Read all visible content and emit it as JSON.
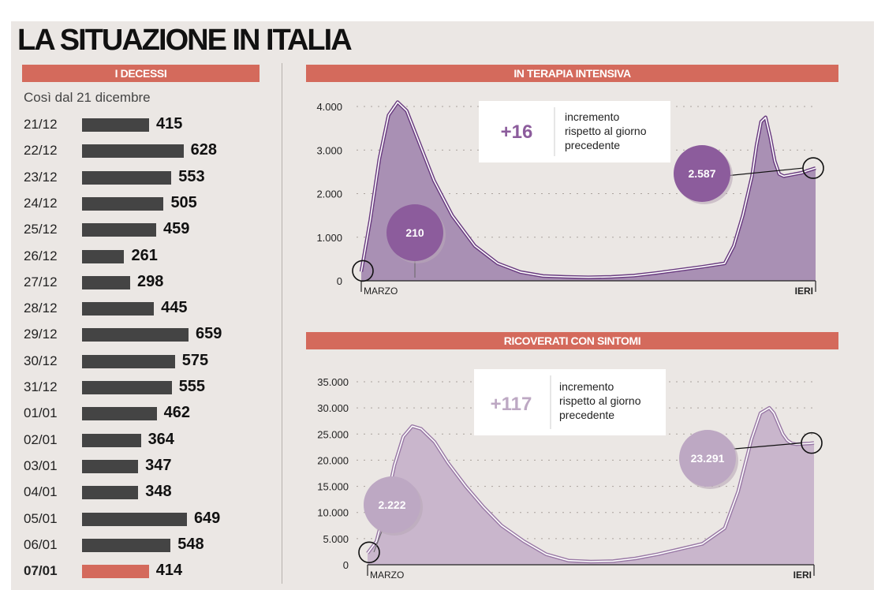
{
  "title": "LA SITUAZIONE IN ITALIA",
  "deaths": {
    "header": "I DECESSI",
    "subtitle": "Così dal 21 dicembre",
    "rows": [
      {
        "date": "21/12",
        "value": 415,
        "label": "415"
      },
      {
        "date": "22/12",
        "value": 628,
        "label": "628"
      },
      {
        "date": "23/12",
        "value": 553,
        "label": "553"
      },
      {
        "date": "24/12",
        "value": 505,
        "label": "505"
      },
      {
        "date": "25/12",
        "value": 459,
        "label": "459"
      },
      {
        "date": "26/12",
        "value": 261,
        "label": "261"
      },
      {
        "date": "27/12",
        "value": 298,
        "label": "298"
      },
      {
        "date": "28/12",
        "value": 445,
        "label": "445"
      },
      {
        "date": "29/12",
        "value": 659,
        "label": "659"
      },
      {
        "date": "30/12",
        "value": 575,
        "label": "575"
      },
      {
        "date": "31/12",
        "value": 555,
        "label": "555"
      },
      {
        "date": "01/01",
        "value": 462,
        "label": "462"
      },
      {
        "date": "02/01",
        "value": 364,
        "label": "364"
      },
      {
        "date": "03/01",
        "value": 347,
        "label": "347"
      },
      {
        "date": "04/01",
        "value": 348,
        "label": "348"
      },
      {
        "date": "05/01",
        "value": 649,
        "label": "649"
      },
      {
        "date": "06/01",
        "value": 548,
        "label": "548"
      },
      {
        "date": "07/01",
        "value": 414,
        "label": "414"
      }
    ],
    "highlight_color": "#d46a5c",
    "bar_color": "#444444"
  },
  "chart_data": [
    {
      "type": "bar",
      "title": "I DECESSI",
      "subtitle": "Così dal 21 dicembre",
      "orientation": "horizontal",
      "categories": [
        "21/12",
        "22/12",
        "23/12",
        "24/12",
        "25/12",
        "26/12",
        "27/12",
        "28/12",
        "29/12",
        "30/12",
        "31/12",
        "01/01",
        "02/01",
        "03/01",
        "04/01",
        "05/01",
        "06/01",
        "07/01"
      ],
      "values": [
        415,
        628,
        553,
        505,
        459,
        261,
        298,
        445,
        659,
        575,
        555,
        462,
        364,
        347,
        348,
        649,
        548,
        414
      ]
    },
    {
      "type": "area",
      "title": "IN TERAPIA INTENSIVA",
      "x_start_label": "MARZO",
      "x_end_label": "IERI",
      "ylim": [
        0,
        4000
      ],
      "yticks": [
        0,
        1000,
        2000,
        3000,
        4000
      ],
      "ytick_labels": [
        "0",
        "1.000",
        "2.000",
        "3.000",
        "4.000"
      ],
      "x": [
        0,
        0.02,
        0.04,
        0.06,
        0.08,
        0.1,
        0.13,
        0.16,
        0.2,
        0.25,
        0.3,
        0.35,
        0.4,
        0.45,
        0.5,
        0.55,
        0.6,
        0.65,
        0.7,
        0.75,
        0.8,
        0.82,
        0.84,
        0.86,
        0.87,
        0.88,
        0.89,
        0.9,
        0.91,
        0.92,
        0.93,
        0.94,
        0.95,
        0.96,
        0.97,
        0.98,
        1.0
      ],
      "values": [
        210,
        1400,
        2800,
        3800,
        4100,
        3900,
        3100,
        2300,
        1500,
        800,
        400,
        200,
        110,
        90,
        80,
        90,
        120,
        180,
        250,
        320,
        400,
        800,
        1500,
        2400,
        3100,
        3650,
        3750,
        3300,
        2750,
        2450,
        2400,
        2420,
        2440,
        2460,
        2480,
        2520,
        2587
      ],
      "callouts": [
        {
          "label": "210",
          "value": 210,
          "position": "start"
        },
        {
          "label": "2.587",
          "value": 2587,
          "position": "end"
        }
      ],
      "increment": {
        "value": "+16",
        "text": "incremento rispetto al giorno precedente"
      }
    },
    {
      "type": "area",
      "title": "RICOVERATI CON SINTOMI",
      "x_start_label": "MARZO",
      "x_end_label": "IERI",
      "ylim": [
        0,
        35000
      ],
      "yticks": [
        0,
        5000,
        10000,
        15000,
        20000,
        25000,
        30000,
        35000
      ],
      "ytick_labels": [
        "0",
        "5.000",
        "10.000",
        "15.000",
        "20.000",
        "25.000",
        "30.000",
        "35.000"
      ],
      "x": [
        0,
        0.02,
        0.04,
        0.06,
        0.08,
        0.1,
        0.12,
        0.15,
        0.18,
        0.22,
        0.26,
        0.3,
        0.35,
        0.4,
        0.45,
        0.5,
        0.55,
        0.6,
        0.65,
        0.7,
        0.75,
        0.8,
        0.83,
        0.86,
        0.88,
        0.9,
        0.91,
        0.92,
        0.93,
        0.94,
        0.95,
        0.96,
        0.97,
        0.98,
        0.99,
        1.0
      ],
      "values": [
        2222,
        4500,
        11000,
        19000,
        24500,
        26500,
        26000,
        23500,
        19500,
        15000,
        11000,
        7500,
        4500,
        2000,
        800,
        600,
        700,
        1200,
        2000,
        3000,
        4000,
        7000,
        14000,
        24000,
        29000,
        30000,
        29000,
        27000,
        25000,
        23800,
        23200,
        23050,
        23100,
        23150,
        23200,
        23291
      ],
      "callouts": [
        {
          "label": "2.222",
          "value": 2222,
          "position": "start"
        },
        {
          "label": "23.291",
          "value": 23291,
          "position": "end"
        }
      ],
      "increment": {
        "value": "+117",
        "text": "incremento rispetto al giorno precedente"
      }
    }
  ],
  "icu": {
    "header": "IN TERAPIA INTENSIVA",
    "increment_value": "+16",
    "increment_line1": "incremento",
    "increment_line2": "rispetto al giorno",
    "increment_line3": "precedente",
    "start_bubble": "210",
    "end_bubble": "2.587",
    "x_start": "MARZO",
    "x_end": "IERI",
    "fill_color": "#a990b4",
    "line_color": "#6a3c80",
    "bubble_color": "#8c5c9c"
  },
  "hosp": {
    "header": "RICOVERATI CON SINTOMI",
    "increment_value": "+117",
    "increment_line1": "incremento",
    "increment_line2": "rispetto al giorno",
    "increment_line3": "precedente",
    "start_bubble": "2.222",
    "end_bubble": "23.291",
    "x_start": "MARZO",
    "x_end": "IERI",
    "fill_color": "#c9b6cc",
    "line_color": "#9a7aa6",
    "bubble_color": "#bda8c3"
  }
}
